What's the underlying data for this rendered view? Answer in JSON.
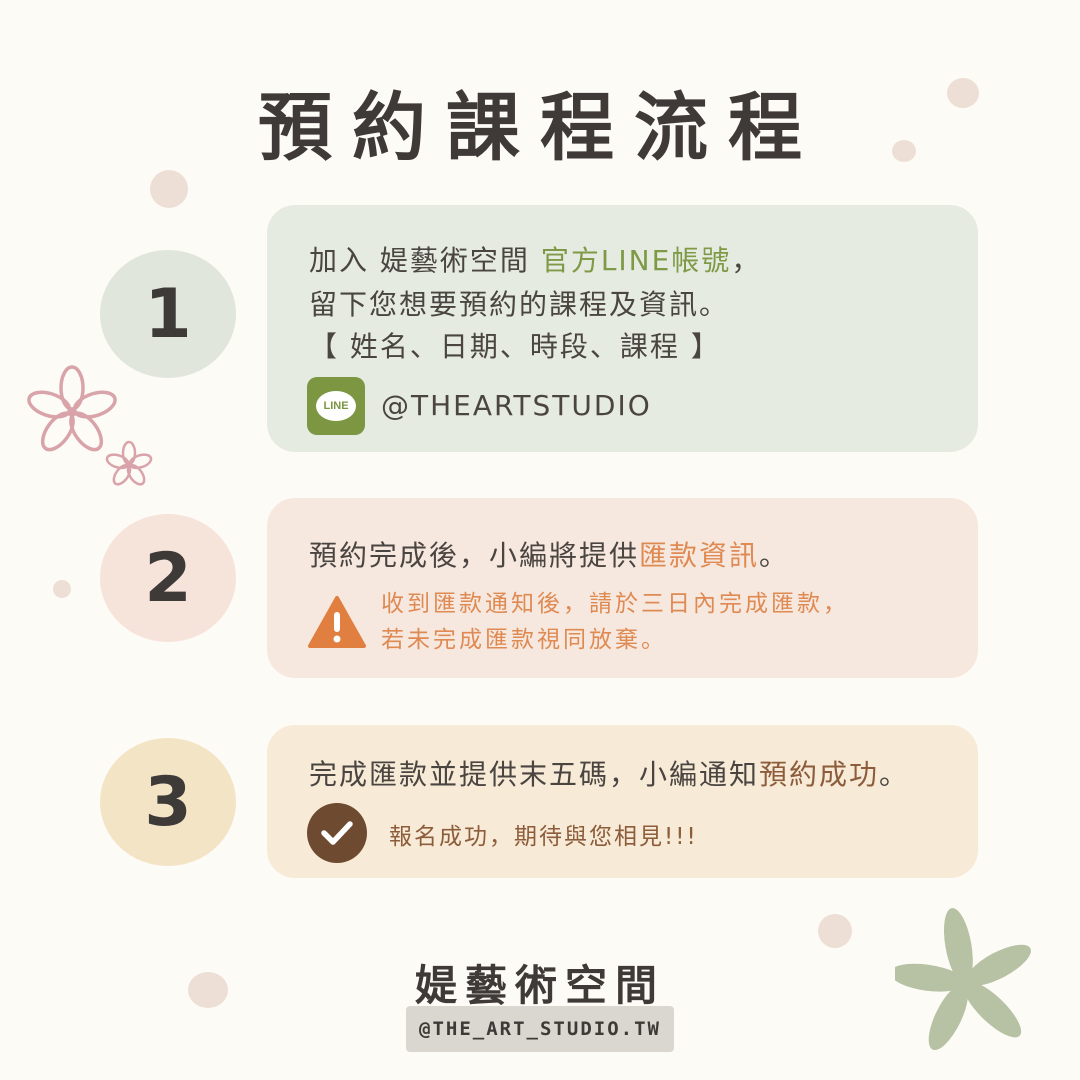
{
  "title": "預約課程流程",
  "steps": [
    {
      "number": "1",
      "line1_prefix": "加入 媞藝術空間 ",
      "line1_highlight": "官方LINE帳號",
      "line1_suffix": "，",
      "line2": "留下您想要預約的課程及資訊。",
      "line3": "【 姓名、日期、時段、課程 】",
      "account_icon_label": "LINE",
      "account_handle": "@THEARTSTUDIO"
    },
    {
      "number": "2",
      "line1_prefix": "預約完成後，小編將提供",
      "line1_highlight": "匯款資訊",
      "line1_suffix": "。",
      "notice_line1": "收到匯款通知後，請於三日內完成匯款，",
      "notice_line2": "若未完成匯款視同放棄。"
    },
    {
      "number": "3",
      "line1_prefix": "完成匯款並提供末五碼，小編通知",
      "line1_highlight": "預約成功",
      "line1_suffix": "。",
      "success_note": "報名成功，期待與您相見!!!"
    }
  ],
  "footer": {
    "brand_name": "媞藝術空間",
    "handle": "@THE_ART_STUDIO.TW"
  },
  "colors": {
    "background": "#fdfbf6",
    "step1_card": "#e6ebe2",
    "step2_card": "#f7e8df",
    "step3_card": "#f7ead6",
    "green_accent": "#7f9a46",
    "orange_accent": "#de8a52",
    "brown_accent": "#8c5c3b"
  }
}
